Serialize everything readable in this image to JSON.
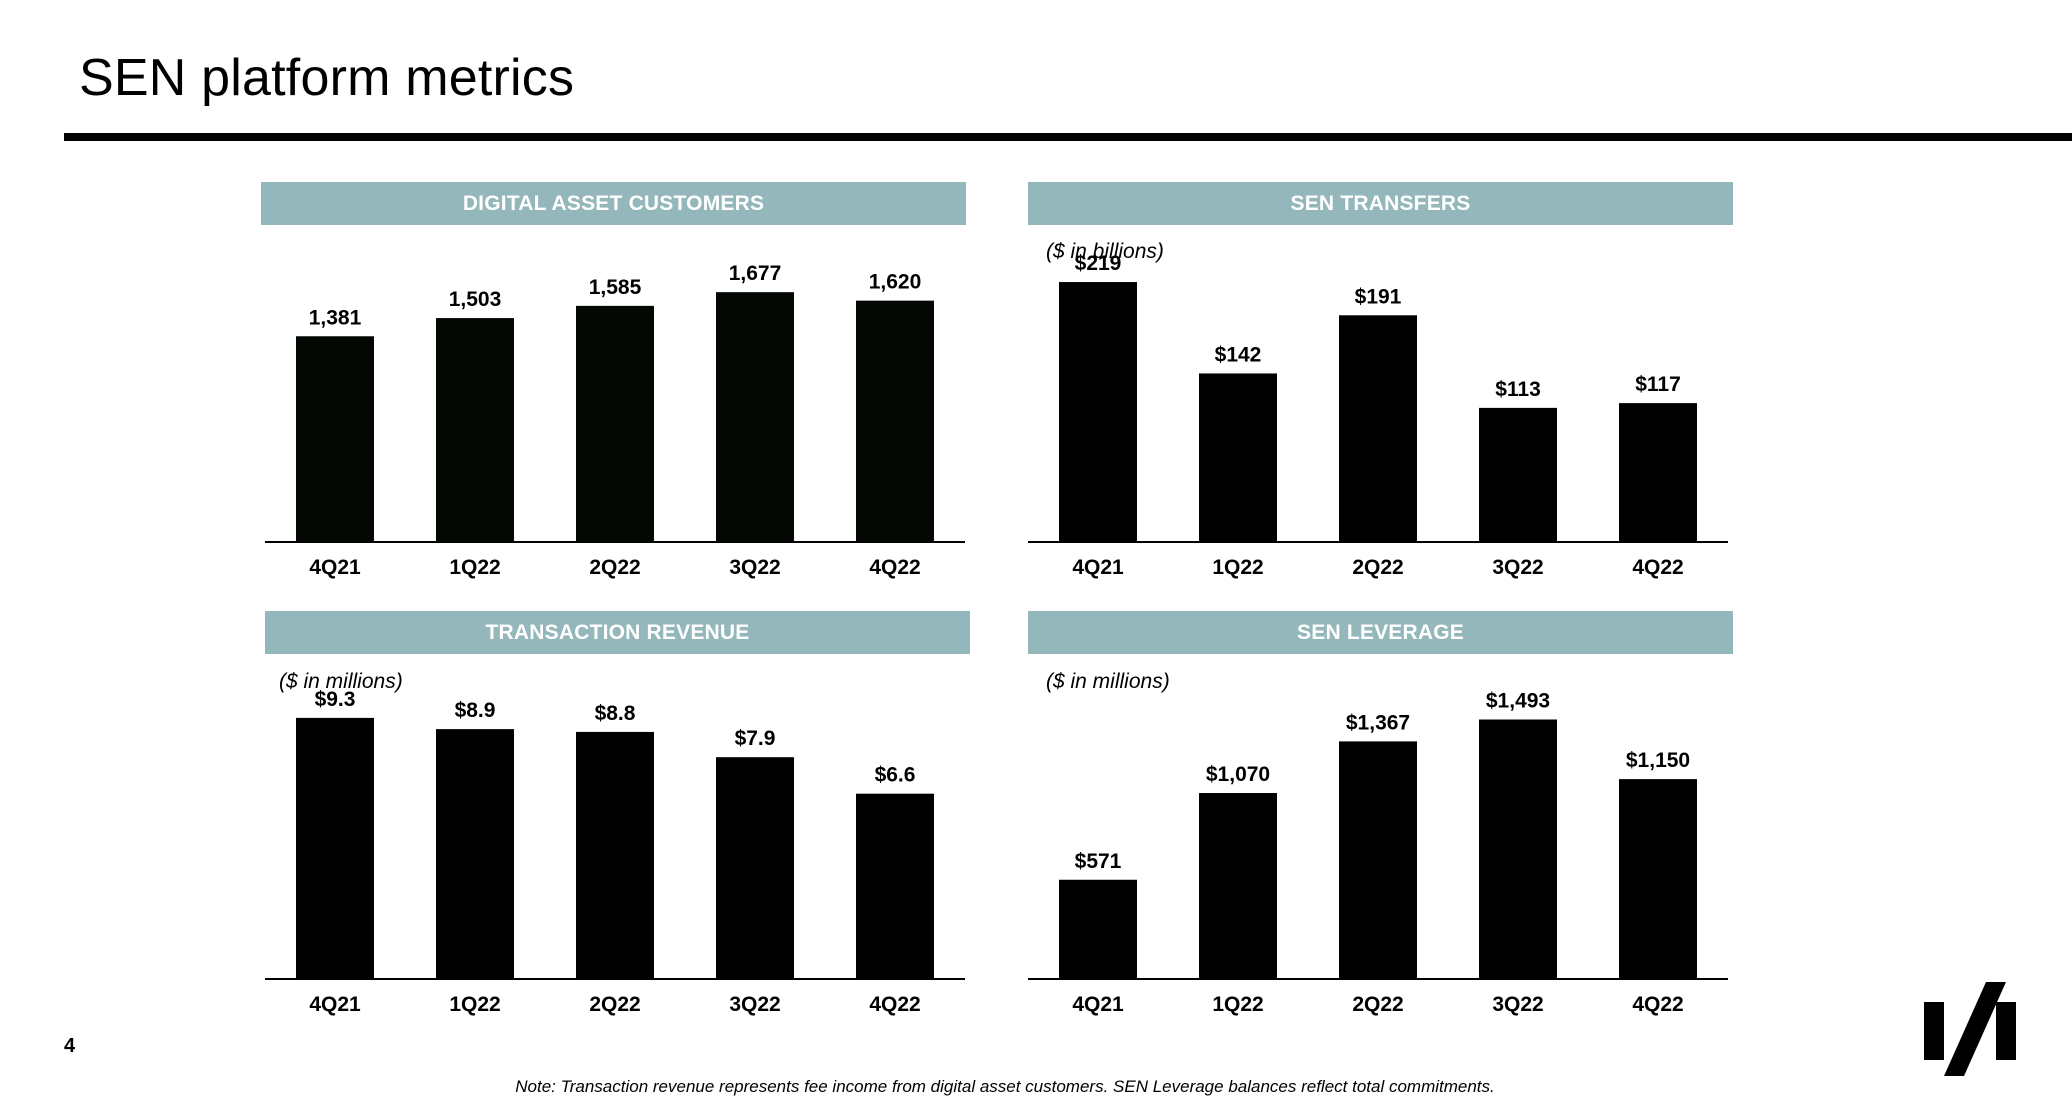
{
  "title": "SEN platform metrics",
  "page_number": "4",
  "note": "Note: Transaction revenue represents fee income from digital asset customers. SEN Leverage balances reflect total commitments.",
  "colors": {
    "header_bg": "#93b7bb",
    "bar": "#000000",
    "bar_customers": "#030803"
  },
  "chart_data": [
    {
      "type": "bar",
      "title": "DIGITAL ASSET CUSTOMERS",
      "unit_label": "",
      "categories": [
        "4Q21",
        "1Q22",
        "2Q22",
        "3Q22",
        "4Q22"
      ],
      "values": [
        1381,
        1503,
        1585,
        1677,
        1620
      ],
      "data_labels": [
        "1,381",
        "1,503",
        "1,585",
        "1,677",
        "1,620"
      ],
      "ylim": [
        0,
        1960
      ]
    },
    {
      "type": "bar",
      "title": "SEN TRANSFERS",
      "unit_label": "($ in billions)",
      "categories": [
        "4Q21",
        "1Q22",
        "2Q22",
        "3Q22",
        "4Q22"
      ],
      "values": [
        219,
        142,
        191,
        113,
        117
      ],
      "data_labels": [
        "$219",
        "$142",
        "$191",
        "$113",
        "$117"
      ],
      "ylim": [
        0,
        246
      ]
    },
    {
      "type": "bar",
      "title": "TRANSACTION REVENUE",
      "unit_label": "($ in millions)",
      "categories": [
        "4Q21",
        "1Q22",
        "2Q22",
        "3Q22",
        "4Q22"
      ],
      "values": [
        9.3,
        8.9,
        8.8,
        7.9,
        6.6
      ],
      "data_labels": [
        "$9.3",
        "$8.9",
        "$8.8",
        "$7.9",
        "$6.6"
      ],
      "ylim": [
        0,
        10.4
      ]
    },
    {
      "type": "bar",
      "title": "SEN LEVERAGE",
      "unit_label": "($ in millions)",
      "categories": [
        "4Q21",
        "1Q22",
        "2Q22",
        "3Q22",
        "4Q22"
      ],
      "values": [
        571,
        1070,
        1367,
        1493,
        1150
      ],
      "data_labels": [
        "$571",
        "$1,070",
        "$1,367",
        "$1,493",
        "$1,150"
      ],
      "ylim": [
        0,
        1680
      ]
    }
  ]
}
